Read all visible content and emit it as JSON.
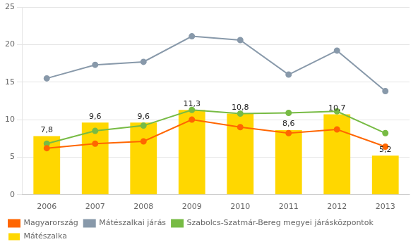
{
  "chart_data": {
    "type": "bar",
    "categories": [
      "2006",
      "2007",
      "2008",
      "2009",
      "2010",
      "2011",
      "2012",
      "2013"
    ],
    "series": [
      {
        "name": "Magyarország",
        "type": "line",
        "color": "#FF6600",
        "marker": "circle",
        "values": [
          6.2,
          6.8,
          7.1,
          10.0,
          9.0,
          8.2,
          8.7,
          6.4
        ]
      },
      {
        "name": "Mátészalkai járás",
        "type": "line",
        "color": "#8899AA",
        "marker": "circle",
        "values": [
          15.5,
          17.3,
          17.7,
          21.1,
          20.6,
          16.0,
          19.2,
          13.8
        ]
      },
      {
        "name": "Szabolcs-Szatmár-Bereg megyei járásközpontok",
        "type": "line",
        "color": "#77BB44",
        "marker": "circle",
        "values": [
          6.8,
          8.5,
          9.2,
          11.3,
          10.8,
          10.9,
          11.1,
          8.2
        ]
      },
      {
        "name": "Mátészalka",
        "type": "bar",
        "color": "#FFD700",
        "data_labels": true,
        "values": [
          7.8,
          9.6,
          9.6,
          11.3,
          10.8,
          8.6,
          10.7,
          5.2
        ],
        "value_labels": [
          "7,8",
          "9,6",
          "9,6",
          "11,3",
          "10,8",
          "8,6",
          "10,7",
          "5,2"
        ]
      }
    ],
    "ylim": [
      0,
      25
    ],
    "yticks": [
      0,
      5,
      10,
      15,
      20,
      25
    ],
    "grid": true,
    "legend": "bottom"
  }
}
